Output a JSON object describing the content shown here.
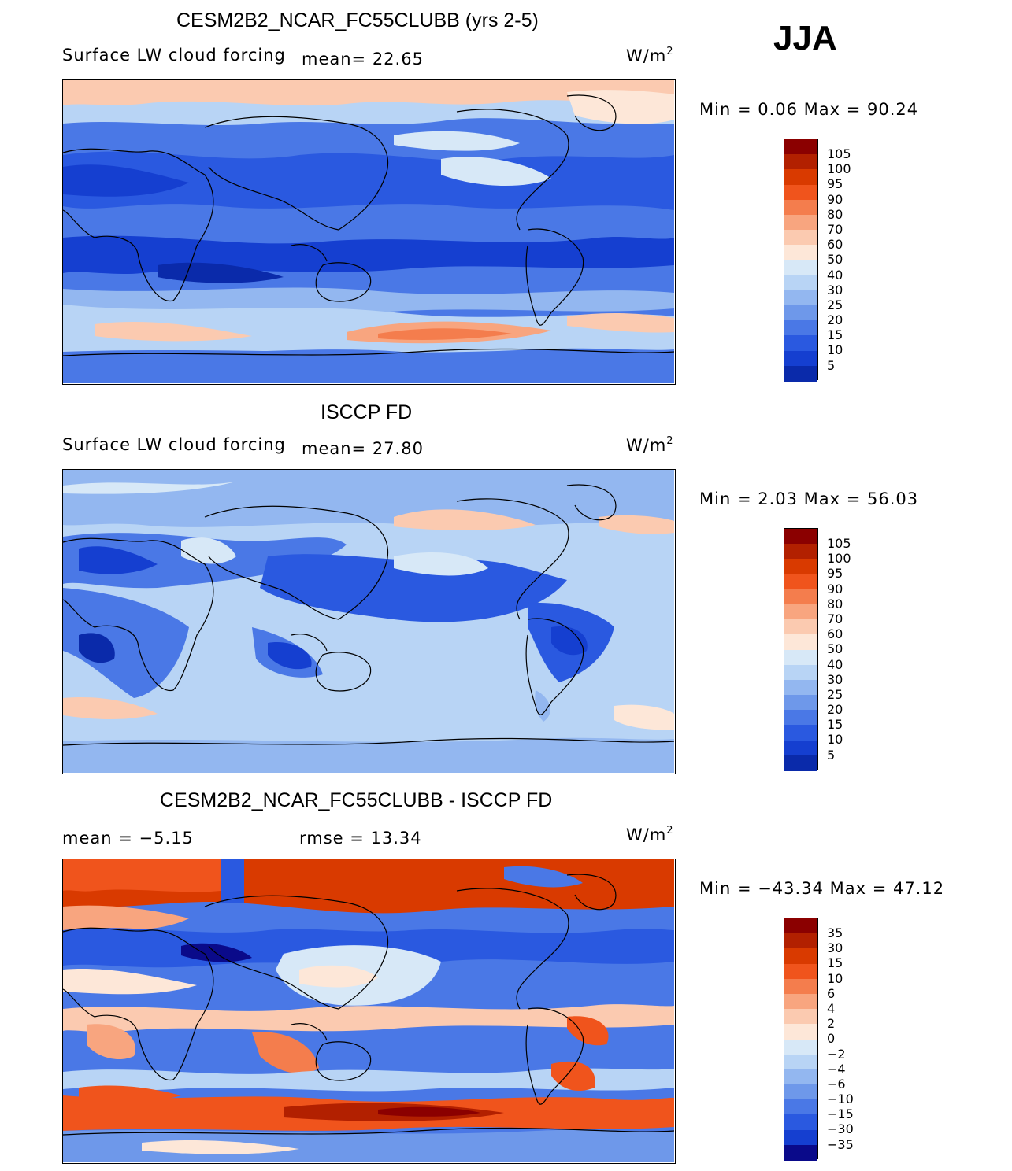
{
  "season": "JJA",
  "panels": [
    {
      "id": "model",
      "title": "CESM2B2_NCAR_FC55CLUBB (yrs 2-5)",
      "variable": "Surface LW cloud forcing",
      "stat1": "mean=  22.65",
      "stat2": "",
      "units": "W/m",
      "units_sup": "2",
      "minmax": "Min =    0.06  Max =   90.24",
      "levels": [
        "105",
        "100",
        "95",
        "90",
        "80",
        "70",
        "60",
        "50",
        "40",
        "30",
        "25",
        "20",
        "15",
        "10",
        "5"
      ],
      "colors": [
        "#8b0000",
        "#b22000",
        "#d93a00",
        "#f0541c",
        "#f47d4d",
        "#f8a57f",
        "#fbcab0",
        "#fde7d8",
        "#d7e8f7",
        "#b8d4f5",
        "#93b7f0",
        "#6e98ea",
        "#4a78e6",
        "#2a59e0",
        "#153fd0",
        "#0a2aaa"
      ]
    },
    {
      "id": "obs",
      "title": "ISCCP FD",
      "variable": "Surface LW cloud forcing",
      "stat1": "mean=  27.80",
      "stat2": "",
      "units": "W/m",
      "units_sup": "2",
      "minmax": "Min =    2.03  Max =   56.03",
      "levels": [
        "105",
        "100",
        "95",
        "90",
        "80",
        "70",
        "60",
        "50",
        "40",
        "30",
        "25",
        "20",
        "15",
        "10",
        "5"
      ],
      "colors": [
        "#8b0000",
        "#b22000",
        "#d93a00",
        "#f0541c",
        "#f47d4d",
        "#f8a57f",
        "#fbcab0",
        "#fde7d8",
        "#d7e8f7",
        "#b8d4f5",
        "#93b7f0",
        "#6e98ea",
        "#4a78e6",
        "#2a59e0",
        "#153fd0",
        "#0a2aaa"
      ]
    },
    {
      "id": "diff",
      "title": "CESM2B2_NCAR_FC55CLUBB - ISCCP FD",
      "variable": "",
      "stat1": "mean =  −5.15",
      "stat2": "rmse =   13.34",
      "units": "W/m",
      "units_sup": "2",
      "minmax": "Min = −43.34  Max =   47.12",
      "levels": [
        "35",
        "30",
        "15",
        "10",
        "6",
        "4",
        "2",
        "0",
        "−2",
        "−4",
        "−6",
        "−10",
        "−15",
        "−30",
        "−35"
      ],
      "colors": [
        "#8b0000",
        "#b22000",
        "#d93a00",
        "#f0541c",
        "#f47d4d",
        "#f8a57f",
        "#fbcab0",
        "#fde7d8",
        "#d7e8f7",
        "#b8d4f5",
        "#93b7f0",
        "#6e98ea",
        "#4a78e6",
        "#2a59e0",
        "#153fd0",
        "#0a0a8a"
      ]
    }
  ]
}
